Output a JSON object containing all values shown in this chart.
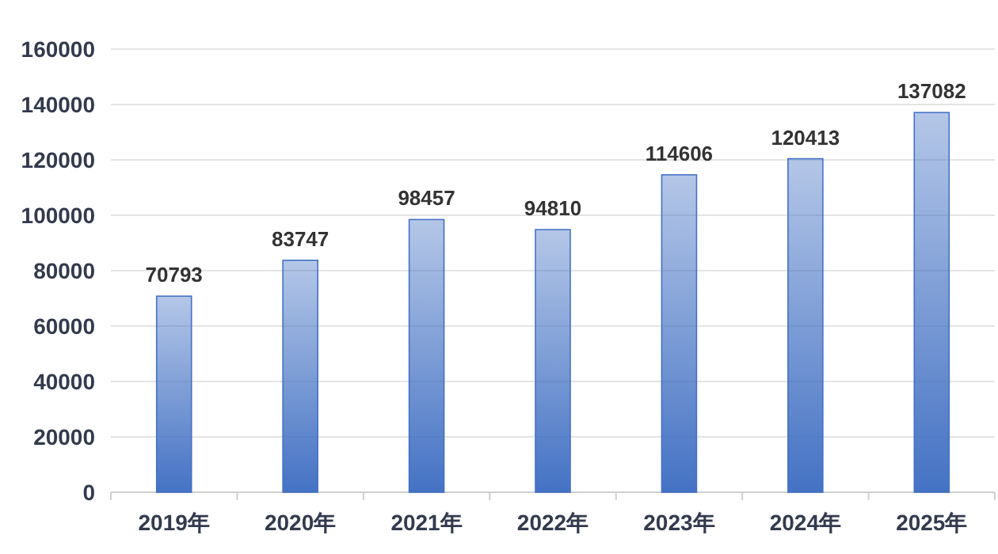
{
  "chart_data": {
    "type": "bar",
    "categories": [
      "2019年",
      "2020年",
      "2021年",
      "2022年",
      "2023年",
      "2024年",
      "2025年"
    ],
    "values": [
      70793,
      83747,
      98457,
      94810,
      114606,
      120413,
      137082
    ],
    "color": "#4472c4",
    "ylim": [
      0,
      160000
    ],
    "yticks": [
      0,
      20000,
      40000,
      60000,
      80000,
      100000,
      120000,
      140000,
      160000
    ],
    "grid": "y",
    "data_labels": true
  }
}
